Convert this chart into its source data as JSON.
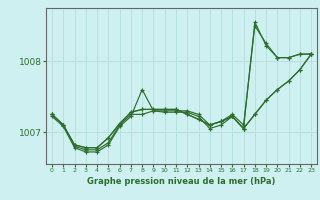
{
  "xlabel": "Graphe pression niveau de la mer (hPa)",
  "background_color": "#cff0f0",
  "grid_color": "#b8e0e0",
  "line_color": "#2d6e2d",
  "x_ticks": [
    0,
    1,
    2,
    3,
    4,
    5,
    6,
    7,
    8,
    9,
    10,
    11,
    12,
    13,
    14,
    15,
    16,
    17,
    18,
    19,
    20,
    21,
    22,
    23
  ],
  "ylim": [
    1006.55,
    1008.75
  ],
  "y_ticks": [
    1007.0,
    1008.0
  ],
  "series": [
    [
      1007.25,
      1007.1,
      1006.8,
      1006.75,
      1006.75,
      1006.85,
      1007.1,
      1007.25,
      1007.25,
      1007.3,
      1007.3,
      1007.3,
      1007.3,
      1007.25,
      1007.1,
      1007.15,
      1007.25,
      1007.1,
      1008.5,
      1008.25,
      1008.05,
      1008.05,
      1008.1,
      1008.1
    ],
    [
      1007.22,
      1007.08,
      1006.78,
      1006.72,
      1006.72,
      1006.82,
      1007.08,
      1007.22,
      1007.6,
      1007.3,
      1007.28,
      1007.28,
      1007.28,
      1007.22,
      1007.05,
      1007.1,
      1007.22,
      1007.05,
      1008.55,
      1008.22,
      1008.05,
      1008.05,
      1008.1,
      1008.1
    ],
    [
      1007.25,
      1007.1,
      1006.82,
      1006.78,
      1006.78,
      1006.92,
      1007.12,
      1007.28,
      1007.32,
      1007.32,
      1007.32,
      1007.32,
      1007.25,
      1007.18,
      1007.1,
      1007.15,
      1007.22,
      1007.05,
      1007.25,
      1007.45,
      1007.6,
      1007.72,
      1007.88,
      1008.1
    ],
    [
      1007.25,
      1007.1,
      1006.82,
      1006.78,
      1006.78,
      1006.92,
      1007.12,
      1007.28,
      1007.32,
      1007.32,
      1007.32,
      1007.32,
      1007.25,
      1007.18,
      1007.1,
      1007.15,
      1007.22,
      1007.05,
      1007.25,
      1007.45,
      1007.6,
      1007.72,
      1007.88,
      1008.1
    ]
  ]
}
